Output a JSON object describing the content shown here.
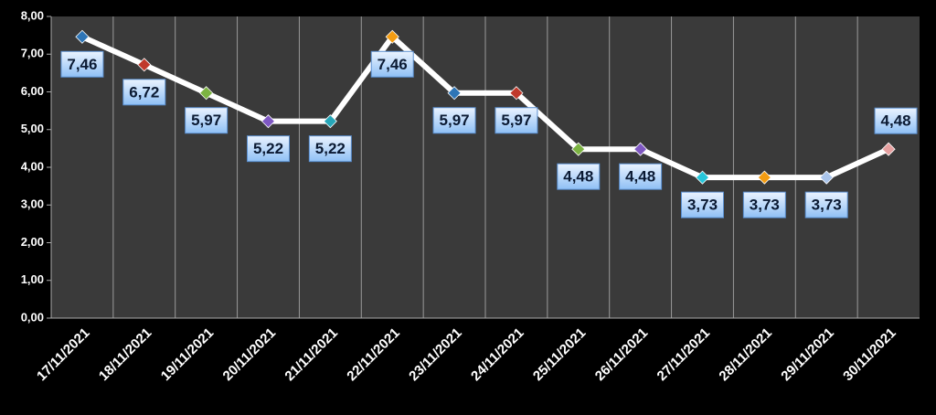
{
  "chart_data": {
    "type": "line",
    "categories": [
      "17/11/2021",
      "18/11/2021",
      "19/11/2021",
      "20/11/2021",
      "21/11/2021",
      "22/11/2021",
      "23/11/2021",
      "24/11/2021",
      "25/11/2021",
      "26/11/2021",
      "27/11/2021",
      "28/11/2021",
      "29/11/2021",
      "30/11/2021"
    ],
    "values": [
      7.46,
      6.72,
      5.97,
      5.22,
      5.22,
      7.46,
      5.97,
      5.97,
      4.48,
      4.48,
      3.73,
      3.73,
      3.73,
      4.48
    ],
    "value_labels": [
      "7,46",
      "6,72",
      "5,97",
      "5,22",
      "5,22",
      "7,46",
      "5,97",
      "5,97",
      "4,48",
      "4,48",
      "3,73",
      "3,73",
      "3,73",
      "4,48"
    ],
    "color": "#ffffff",
    "marker_colors": [
      "#2e75b6",
      "#c0392b",
      "#7cb342",
      "#7e57c2",
      "#26a6b8",
      "#f39c12",
      "#2e75b6",
      "#c0392b",
      "#7cb342",
      "#7e57c2",
      "#26c6da",
      "#f39c12",
      "#a9c4eb",
      "#e6a0a0"
    ],
    "ylim": [
      0,
      8
    ],
    "yticks": [
      {
        "value": 0,
        "label": "0,00"
      },
      {
        "value": 1,
        "label": "1,00"
      },
      {
        "value": 2,
        "label": "2,00"
      },
      {
        "value": 3,
        "label": "3,00"
      },
      {
        "value": 4,
        "label": "4,00"
      },
      {
        "value": 5,
        "label": "5,00"
      },
      {
        "value": 6,
        "label": "6,00"
      },
      {
        "value": 7,
        "label": "7,00"
      },
      {
        "value": 8,
        "label": "8,00"
      }
    ],
    "grid": true
  }
}
